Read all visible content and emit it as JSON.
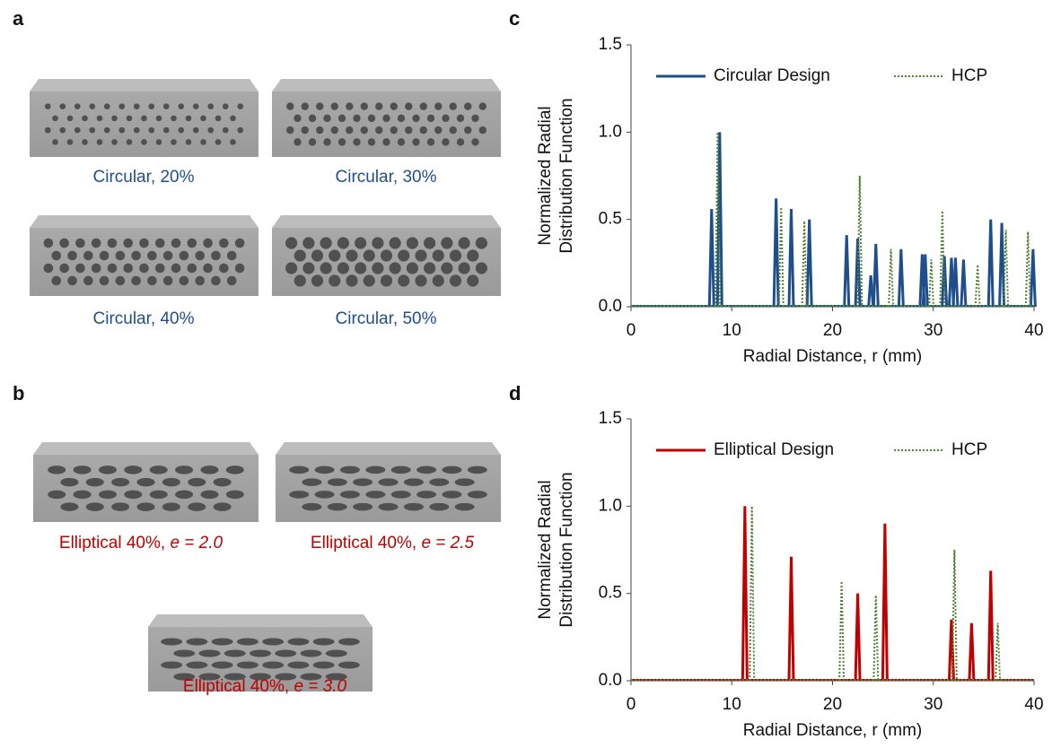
{
  "panels": [
    "a",
    "b",
    "c",
    "d"
  ],
  "images": {
    "circular": [
      "Circular, 20%",
      "Circular, 30%",
      "Circular, 40%",
      "Circular, 50%"
    ],
    "elliptical": [
      {
        "text": "Elliptical 40%, ",
        "e": "e = 2.0"
      },
      {
        "text": "Elliptical 40%, ",
        "e": "e = 2.5"
      },
      {
        "text": "Elliptical 40%, ",
        "e": "e = 3.0"
      }
    ]
  },
  "chart_data": [
    {
      "type": "spike",
      "xlabel": "Radial Distance, r (mm)",
      "ylabel": [
        "Normalized Radial",
        "Distribution Function"
      ],
      "xlim": [
        0,
        40
      ],
      "ylim": [
        0,
        1.5
      ],
      "xticks": [
        0,
        10,
        20,
        30,
        40
      ],
      "yticks": [
        {
          "value": 0,
          "label": "0.0"
        },
        {
          "value": 0.5,
          "label": "0.5"
        },
        {
          "value": 1,
          "label": "1.0"
        },
        {
          "value": 1.5,
          "label": "1.5"
        }
      ],
      "legend": "top",
      "series": [
        {
          "name": "Circular Design",
          "color": "#1f4e8c",
          "style": "solid",
          "x": [
            8.0,
            8.8,
            14.4,
            15.9,
            17.7,
            21.4,
            22.5,
            23.8,
            24.3,
            26.8,
            28.9,
            29.2,
            31.1,
            31.8,
            32.2,
            33.0,
            35.7,
            36.8,
            39.9
          ],
          "values": [
            0.56,
            1.0,
            0.62,
            0.56,
            0.5,
            0.41,
            0.39,
            0.18,
            0.36,
            0.33,
            0.3,
            0.3,
            0.29,
            0.28,
            0.28,
            0.27,
            0.5,
            0.48,
            0.33
          ]
        },
        {
          "name": "HCP",
          "color": "#548235",
          "style": "dotted",
          "x": [
            8.6,
            14.9,
            17.2,
            22.7,
            25.8,
            29.8,
            30.9,
            34.4,
            37.2,
            39.4
          ],
          "values": [
            1.0,
            0.57,
            0.49,
            0.75,
            0.33,
            0.27,
            0.55,
            0.24,
            0.44,
            0.43
          ]
        }
      ]
    },
    {
      "type": "spike",
      "xlabel": "Radial Distance, r (mm)",
      "ylabel": [
        "Normalized Radial",
        "Distribution Function"
      ],
      "xlim": [
        0,
        40
      ],
      "ylim": [
        0,
        1.5
      ],
      "xticks": [
        0,
        10,
        20,
        30,
        40
      ],
      "yticks": [
        {
          "value": 0,
          "label": "0.0"
        },
        {
          "value": 0.5,
          "label": "0.5"
        },
        {
          "value": 1,
          "label": "1.0"
        },
        {
          "value": 1.5,
          "label": "1.5"
        }
      ],
      "legend": "top",
      "series": [
        {
          "name": "Elliptical Design",
          "color": "#c00000",
          "style": "solid",
          "x": [
            11.3,
            15.9,
            22.5,
            25.2,
            31.8,
            33.8,
            35.7
          ],
          "values": [
            1.0,
            0.71,
            0.5,
            0.9,
            0.35,
            0.33,
            0.63
          ]
        },
        {
          "name": "HCP",
          "color": "#548235",
          "style": "dotted",
          "x": [
            12.0,
            20.9,
            24.3,
            32.1,
            36.4
          ],
          "values": [
            1.0,
            0.57,
            0.49,
            0.75,
            0.33
          ]
        }
      ]
    }
  ]
}
